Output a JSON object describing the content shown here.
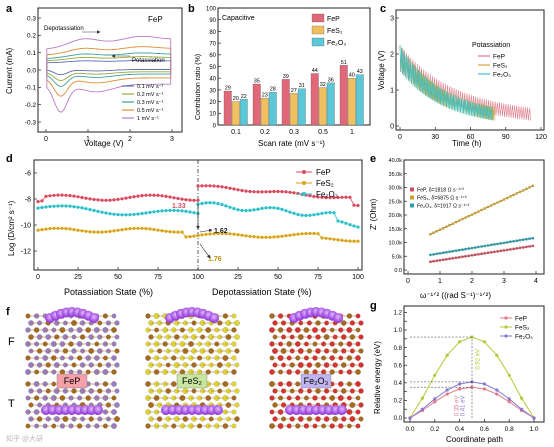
{
  "panels": {
    "a": {
      "label": "a",
      "title": "FeP",
      "xlabel": "Voltage (V)",
      "ylabel": "Current (mA)",
      "xticks": [
        "0",
        "1",
        "2",
        "3"
      ],
      "yticks": [
        "0.3",
        "0.2",
        "0.1",
        "0.0",
        "-0.1",
        "-0.2",
        "-0.3"
      ],
      "arrow_top": "Depotassiation",
      "arrow_bottom": "Potassiation",
      "legend": [
        "0.1 mV s⁻¹",
        "0.2 mV s⁻¹",
        "0.3 mV s⁻¹",
        "0.5 mV s⁻¹",
        "1 mV s⁻¹"
      ],
      "colors": [
        "#5b6fb5",
        "#9aa63a",
        "#3d9e9c",
        "#e08a33",
        "#b87cc4"
      ]
    },
    "b": {
      "label": "b",
      "inner_title": "Capacitive",
      "xlabel": "Scan rate (mV s⁻¹)",
      "ylabel": "Contribution ratio (%)",
      "yticks": [
        "0",
        "10",
        "20",
        "30",
        "40",
        "50",
        "60",
        "70",
        "80",
        "90",
        "100"
      ],
      "legend": [
        "FeP",
        "FeS₂",
        "Fe₂O₃"
      ],
      "colors": [
        "#e06878",
        "#f0c060",
        "#5bc8d8"
      ]
    },
    "c": {
      "label": "c",
      "xlabel": "Time (h)",
      "ylabel": "Voltage (V)",
      "legend_title": "Potassiation",
      "legend": [
        "FeP",
        "FeS₂",
        "Fe₂O₃"
      ],
      "xticks": [
        "0",
        "30",
        "60",
        "90",
        "120"
      ],
      "yticks": [
        "0",
        "1",
        "2",
        "3"
      ],
      "colors": [
        "#e07c8c",
        "#d4a640",
        "#3cc0c0"
      ]
    },
    "d": {
      "label": "d",
      "xlabel_left": "Potassiation State (%)",
      "xlabel_right": "Depotassiation State (%)",
      "ylabel": "Log (D/cm² s⁻¹)",
      "xticks_left": [
        "0",
        "25",
        "50",
        "75",
        "100"
      ],
      "xticks_right": [
        "25",
        "50",
        "75",
        "100"
      ],
      "yticks": [
        "-6",
        "-8",
        "-10",
        "-12"
      ],
      "legend": [
        "FeP",
        "FeS₂",
        "Fe₂O₃"
      ],
      "colors": [
        "#d94a5e",
        "#d9a41a",
        "#2cc0c8"
      ],
      "annotations": [
        "1.33",
        "1.62",
        "1.76"
      ]
    },
    "e": {
      "label": "e",
      "xlabel": "ω⁻¹ᐟ² ((rad S⁻¹)⁻¹ᐟ²)",
      "ylabel": "Z' (Ohm)",
      "xticks": [
        "0",
        "1",
        "2",
        "3",
        "4"
      ],
      "yticks": [
        "0.0",
        "5.0k",
        "10.0k",
        "15.0k",
        "20.0k",
        "25.0k",
        "30.0k",
        "35.0k",
        "40.0k"
      ],
      "legend": [
        "FeP, δ=1818 Ω s⁻¹ᐟ²",
        "FeS₂, δ=6875 Ω s⁻¹ᐟ²",
        "Fe₂O₃, δ=1917 Ω s⁻¹ᐟ²"
      ],
      "colors": [
        "#c8505e",
        "#c8a030",
        "#2c9ca8"
      ]
    },
    "f": {
      "label": "f",
      "row_top": "F",
      "row_bottom": "T",
      "materials": [
        "FeP",
        "FeS₂",
        "Fe₂O₃"
      ],
      "badge_colors": [
        "#f4a0a8",
        "#c8e6a0",
        "#c0b4f0"
      ]
    },
    "g": {
      "label": "g",
      "xlabel": "Coordinate path",
      "ylabel": "Relative energy (eV)",
      "xticks": [
        "0.0",
        "0.2",
        "0.4",
        "0.6",
        "0.8",
        "1.0"
      ],
      "yticks": [
        "0.0",
        "0.1",
        "0.2",
        "0.3",
        "0.4",
        "0.5",
        "0.6",
        "0.7",
        "0.8",
        "0.9",
        "1.0",
        "1.1",
        "1.2"
      ],
      "legend": [
        "FeP",
        "FeS₂",
        "Fe₂O₃"
      ],
      "colors": [
        "#e07c8c",
        "#b8c83a",
        "#8878d0"
      ],
      "annotations": [
        "0.92 eV",
        "0.35 eV",
        "0.41 eV"
      ]
    }
  },
  "watermark": "知乎 @大研"
}
